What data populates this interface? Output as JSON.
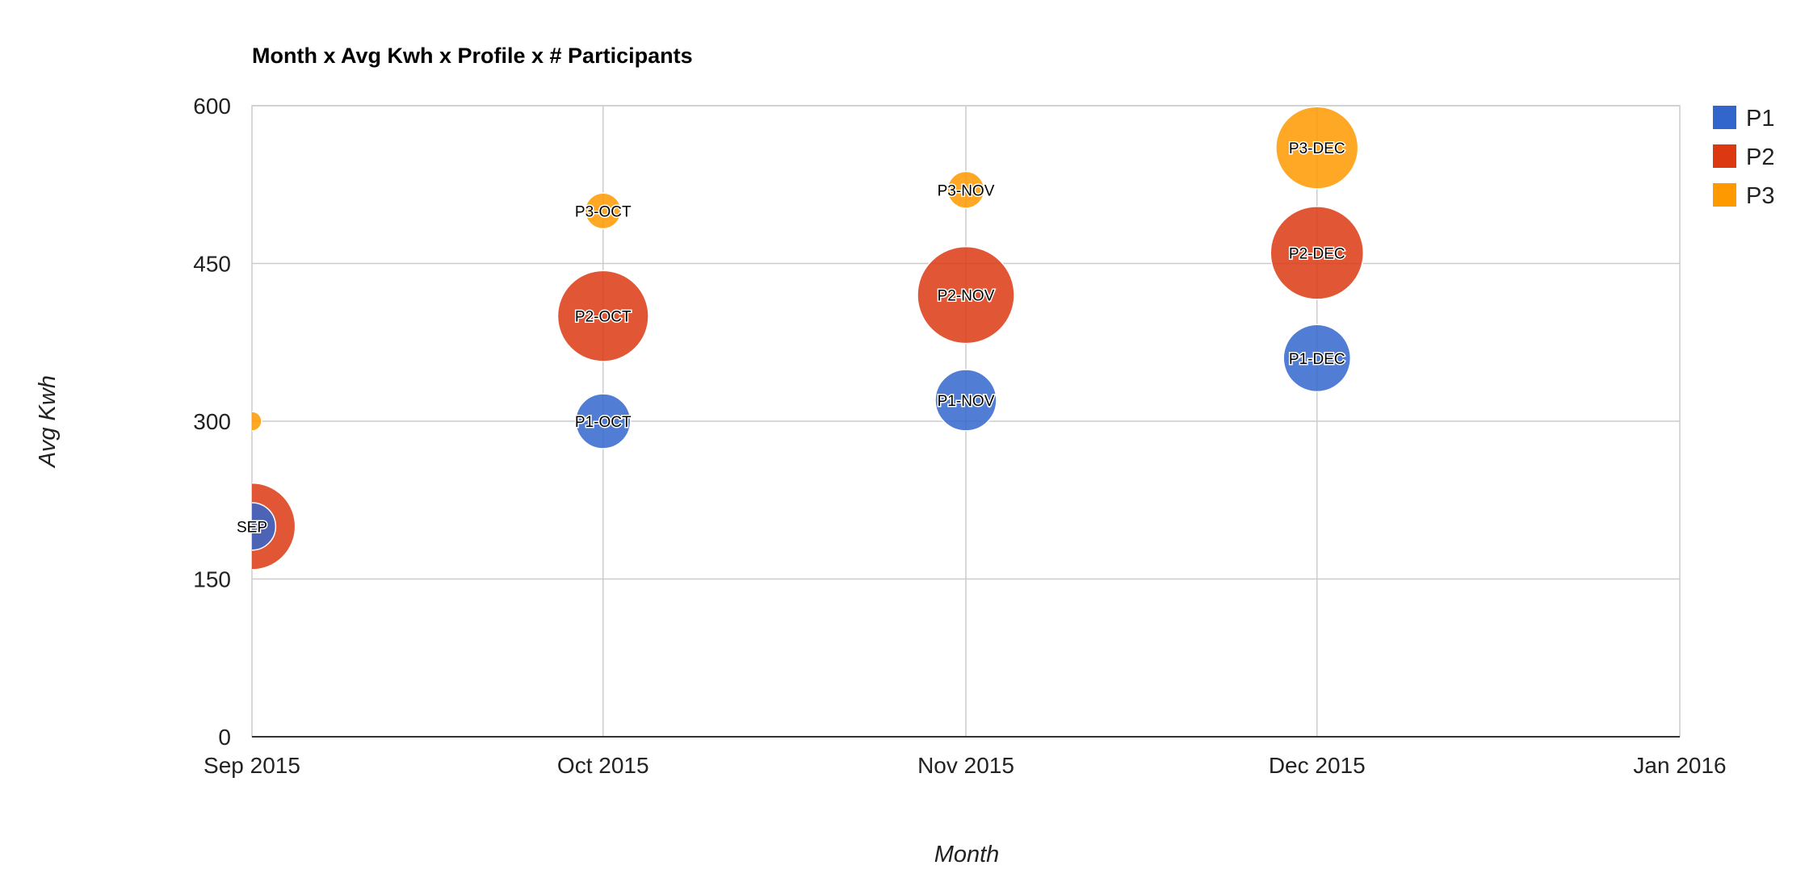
{
  "chart_data": {
    "type": "bubble",
    "title": "Month x Avg Kwh x Profile x # Participants",
    "xlabel": "Month",
    "ylabel": "Avg Kwh",
    "x_ticks": [
      "Sep 2015",
      "Oct 2015",
      "Nov 2015",
      "Dec 2015",
      "Jan 2016"
    ],
    "y_ticks": [
      "0",
      "150",
      "300",
      "450",
      "600"
    ],
    "ylim": [
      0,
      600
    ],
    "xlim": [
      "2015-09-01",
      "2016-01-01"
    ],
    "grid": true,
    "legend_position": "right",
    "size_variable": "# Participants",
    "colors": {
      "P1": "#3366cc",
      "P2": "#dc3912",
      "P3": "#ff9900"
    },
    "legend": [
      "P1",
      "P2",
      "P3"
    ],
    "series": [
      {
        "name": "P1",
        "points": [
          {
            "label": "",
            "x": "2015-09-01",
            "y": 200,
            "size": 30
          },
          {
            "label": "P1-OCT",
            "x": "2015-10-01",
            "y": 300,
            "size": 40
          },
          {
            "label": "P1-NOV",
            "x": "2015-11-01",
            "y": 320,
            "size": 50
          },
          {
            "label": "P1-DEC",
            "x": "2015-12-01",
            "y": 360,
            "size": 60
          }
        ]
      },
      {
        "name": "P2",
        "points": [
          {
            "label": "SEP",
            "x": "2015-09-01",
            "y": 200,
            "size": 100
          },
          {
            "label": "P2-OCT",
            "x": "2015-10-01",
            "y": 400,
            "size": 110
          },
          {
            "label": "P2-NOV",
            "x": "2015-11-01",
            "y": 420,
            "size": 125
          },
          {
            "label": "P2-DEC",
            "x": "2015-12-01",
            "y": 460,
            "size": 115
          }
        ]
      },
      {
        "name": "P3",
        "points": [
          {
            "label": "",
            "x": "2015-09-01",
            "y": 300,
            "size": 5
          },
          {
            "label": "P3-OCT",
            "x": "2015-10-01",
            "y": 500,
            "size": 17
          },
          {
            "label": "P3-NOV",
            "x": "2015-11-01",
            "y": 520,
            "size": 18
          },
          {
            "label": "P3-DEC",
            "x": "2015-12-01",
            "y": 560,
            "size": 90
          }
        ]
      }
    ]
  }
}
